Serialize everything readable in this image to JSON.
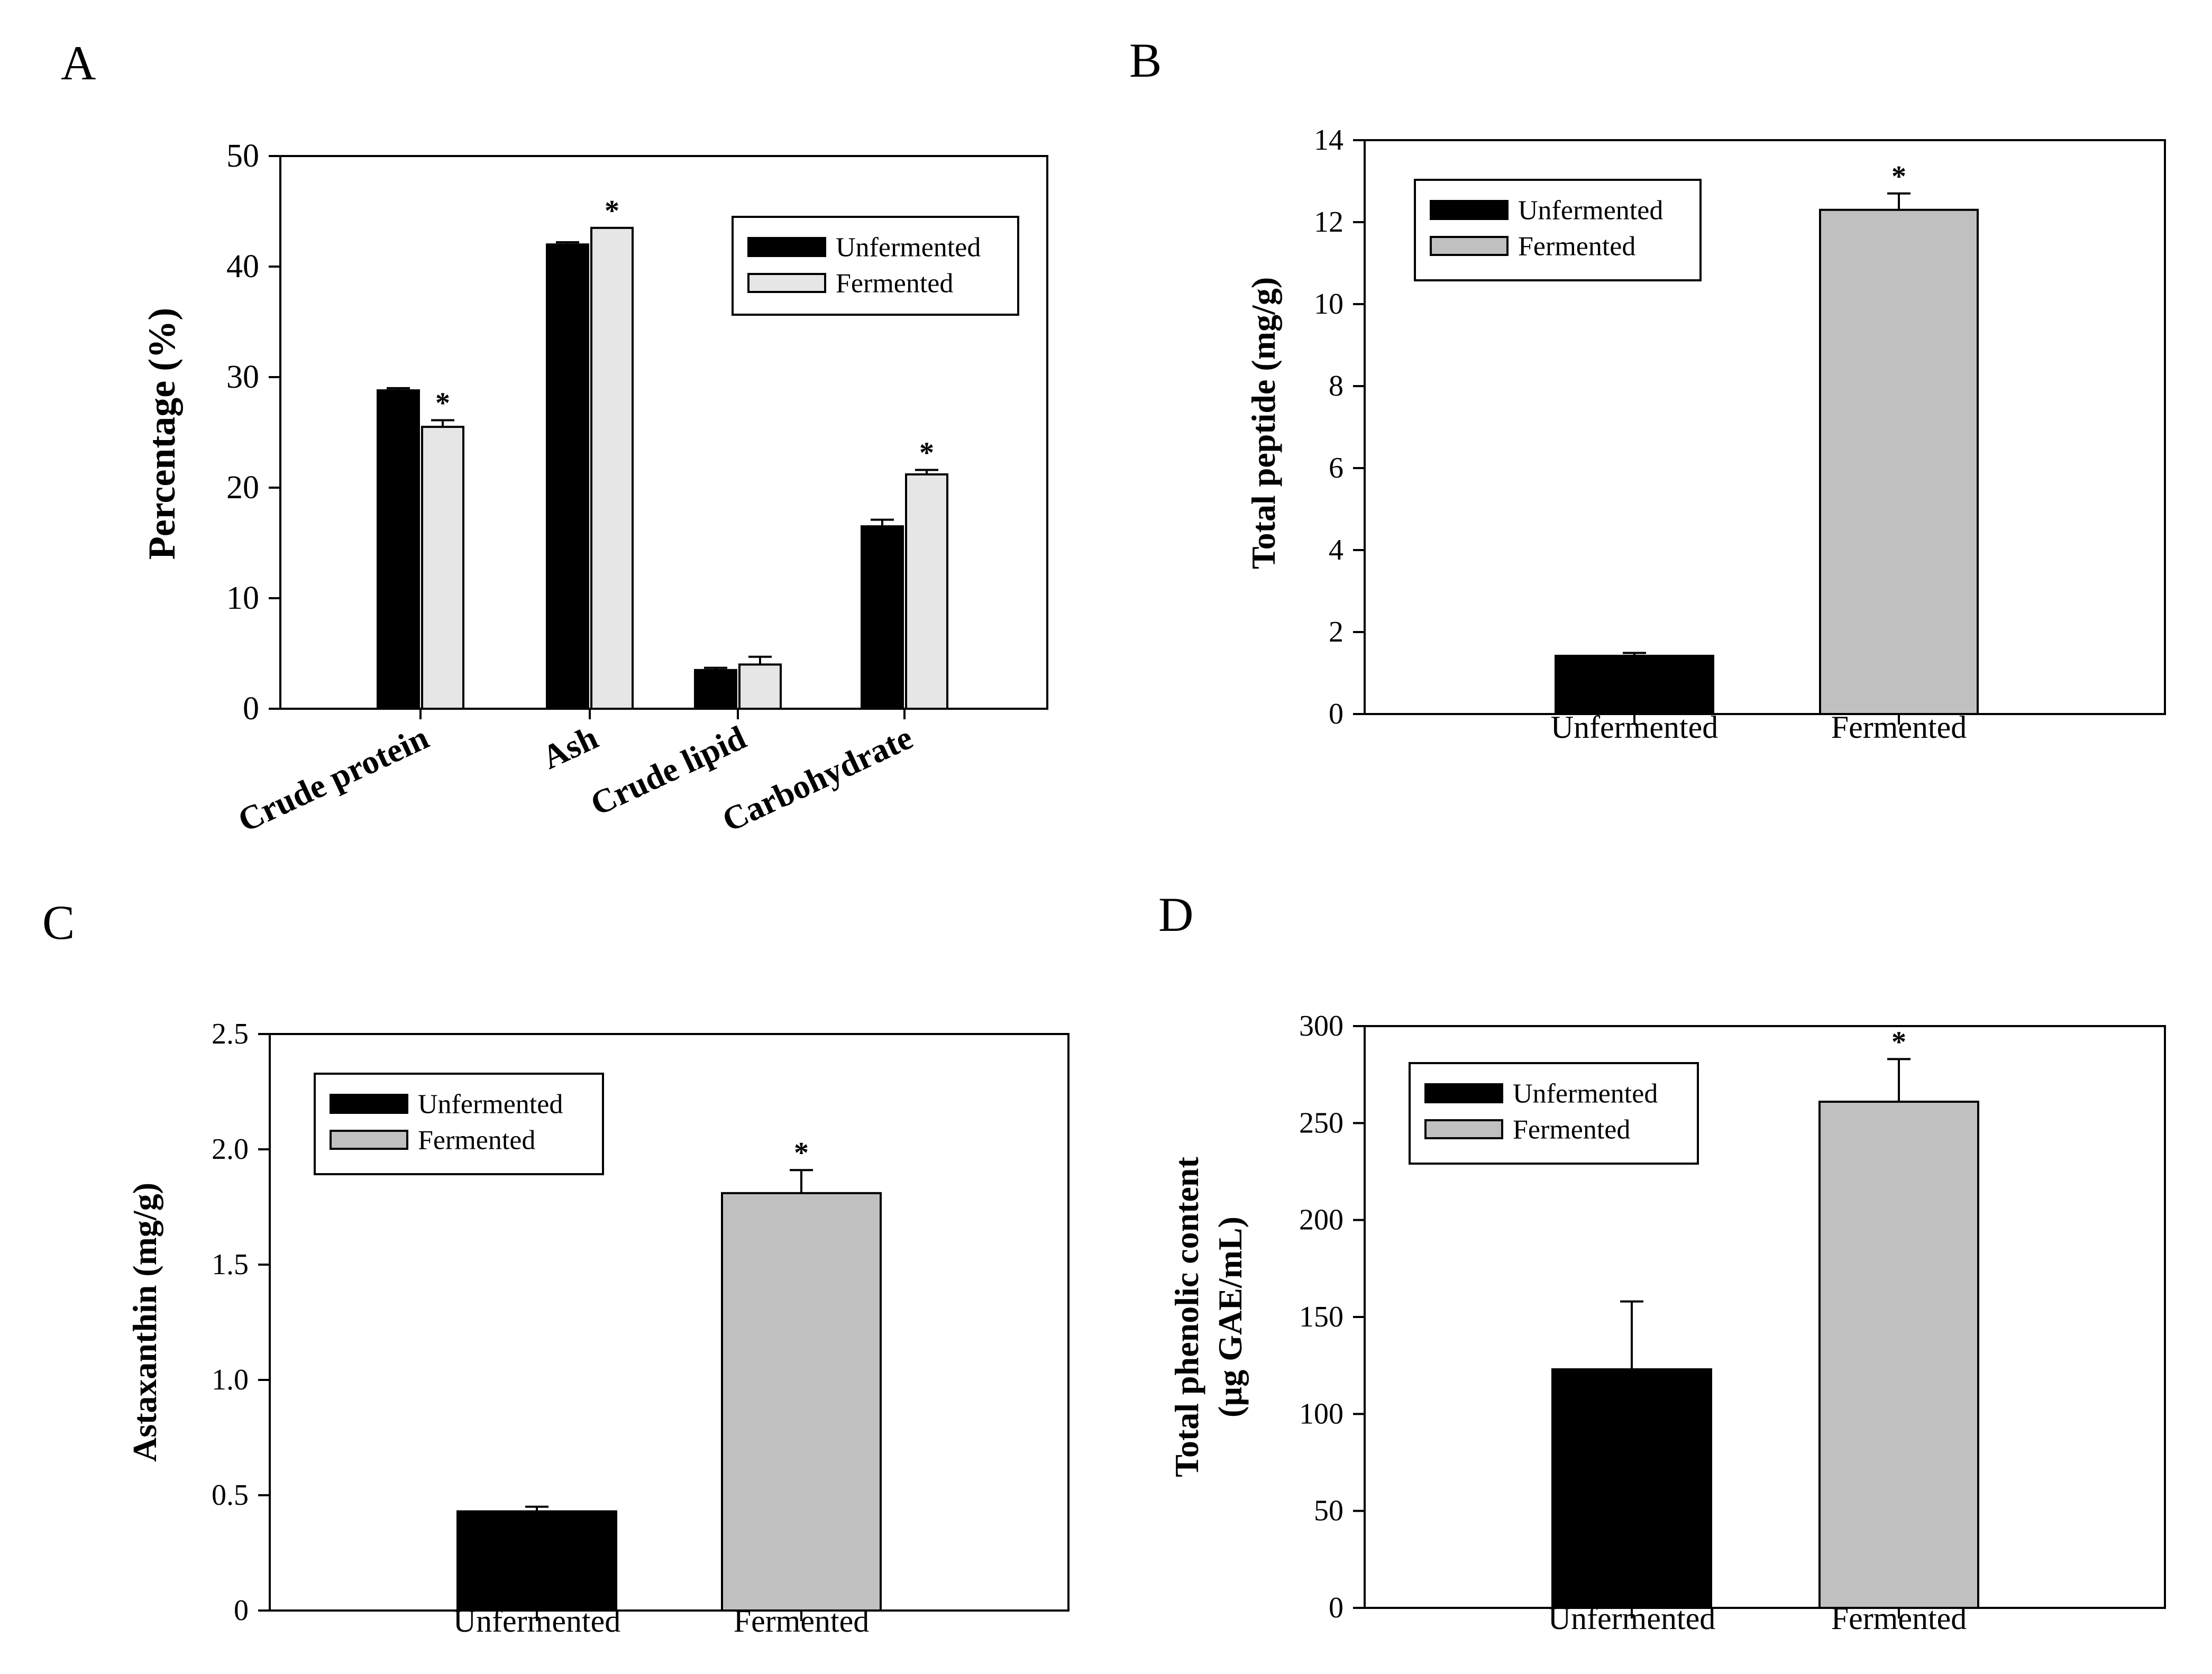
{
  "chart_data": [
    {
      "panel": "A",
      "type": "bar",
      "title": "",
      "xlabel": "",
      "ylabel": "Percentage (%)",
      "ylim": [
        0,
        50
      ],
      "yticks": [
        "0",
        "10",
        "20",
        "30",
        "40",
        "50"
      ],
      "categories": [
        "Crude protein",
        "Ash",
        "Crude lipid",
        "Carbohydrate"
      ],
      "series": [
        {
          "name": "Unfermented",
          "color": "#000000",
          "values": [
            28.8,
            42.0,
            3.5,
            16.5
          ],
          "errors": [
            0.2,
            0.2,
            0.2,
            0.6
          ]
        },
        {
          "name": "Fermented",
          "color": "#e6e6e6",
          "values": [
            25.5,
            43.5,
            4.0,
            21.2
          ],
          "errors": [
            0.6,
            0.0,
            0.7,
            0.4
          ]
        }
      ],
      "significance": [
        "*",
        "*",
        "",
        "*"
      ],
      "legend": "top-right"
    },
    {
      "panel": "B",
      "type": "bar",
      "title": "",
      "xlabel": "",
      "ylabel": "Total peptide  (mg/g)",
      "ylim": [
        0,
        14
      ],
      "yticks": [
        "0",
        "2",
        "4",
        "6",
        "8",
        "10",
        "12",
        "14"
      ],
      "categories": [
        "Unfermented",
        "Fermented"
      ],
      "series": [
        {
          "name": "Unfermented",
          "color": "#000000",
          "values": [
            1.42,
            null
          ],
          "errors": [
            0.07,
            null
          ]
        },
        {
          "name": "Fermented",
          "color": "#c0c0c0",
          "values": [
            null,
            12.3
          ],
          "errors": [
            null,
            0.4
          ]
        }
      ],
      "significance": [
        "",
        "*"
      ],
      "legend": "top-left"
    },
    {
      "panel": "C",
      "type": "bar",
      "title": "",
      "xlabel": "",
      "ylabel": "Astaxanthin  (mg/g)",
      "ylim": [
        0,
        2.5
      ],
      "yticks": [
        "0",
        "0.5",
        "1.0",
        "1.5",
        "2.0",
        "2.5"
      ],
      "categories": [
        "Unfermented",
        "Fermented"
      ],
      "series": [
        {
          "name": "Unfermented",
          "color": "#000000",
          "values": [
            0.43,
            null
          ],
          "errors": [
            0.02,
            null
          ]
        },
        {
          "name": "Fermented",
          "color": "#c0c0c0",
          "values": [
            null,
            1.81
          ],
          "errors": [
            null,
            0.1
          ]
        }
      ],
      "significance": [
        "",
        "*"
      ],
      "legend": "top-left"
    },
    {
      "panel": "D",
      "type": "bar",
      "title": "",
      "xlabel": "",
      "ylabel": [
        "Total phenolic content",
        "(µg GAE/mL)"
      ],
      "ylim": [
        0,
        300
      ],
      "yticks": [
        "0",
        "50",
        "100",
        "150",
        "200",
        "250",
        "300"
      ],
      "categories": [
        "Unfermented",
        "Fermented"
      ],
      "series": [
        {
          "name": "Unfermented",
          "color": "#000000",
          "values": [
            123,
            null
          ],
          "errors": [
            35,
            null
          ]
        },
        {
          "name": "Fermented",
          "color": "#c0c0c0",
          "values": [
            null,
            261
          ],
          "errors": [
            null,
            22
          ]
        }
      ],
      "significance": [
        "",
        "*"
      ],
      "legend": "top-left"
    }
  ]
}
